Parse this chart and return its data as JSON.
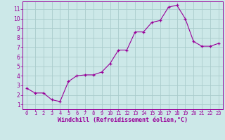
{
  "x": [
    0,
    1,
    2,
    3,
    4,
    5,
    6,
    7,
    8,
    9,
    10,
    11,
    12,
    13,
    14,
    15,
    16,
    17,
    18,
    19,
    20,
    21,
    22,
    23
  ],
  "y": [
    2.7,
    2.2,
    2.2,
    1.5,
    1.3,
    3.4,
    4.0,
    4.1,
    4.1,
    4.4,
    5.3,
    6.7,
    6.7,
    8.6,
    8.6,
    9.6,
    9.8,
    11.2,
    11.4,
    10.0,
    7.6,
    7.1,
    7.1,
    7.4
  ],
  "xlabel": "Windchill (Refroidissement éolien,°C)",
  "background_color": "#cce8e8",
  "line_color": "#990099",
  "grid_color": "#aacccc",
  "xlim_min": -0.5,
  "xlim_max": 23.5,
  "ylim_min": 0.5,
  "ylim_max": 11.8,
  "xticks": [
    0,
    1,
    2,
    3,
    4,
    5,
    6,
    7,
    8,
    9,
    10,
    11,
    12,
    13,
    14,
    15,
    16,
    17,
    18,
    19,
    20,
    21,
    22,
    23
  ],
  "yticks": [
    1,
    2,
    3,
    4,
    5,
    6,
    7,
    8,
    9,
    10,
    11
  ],
  "marker": "+"
}
